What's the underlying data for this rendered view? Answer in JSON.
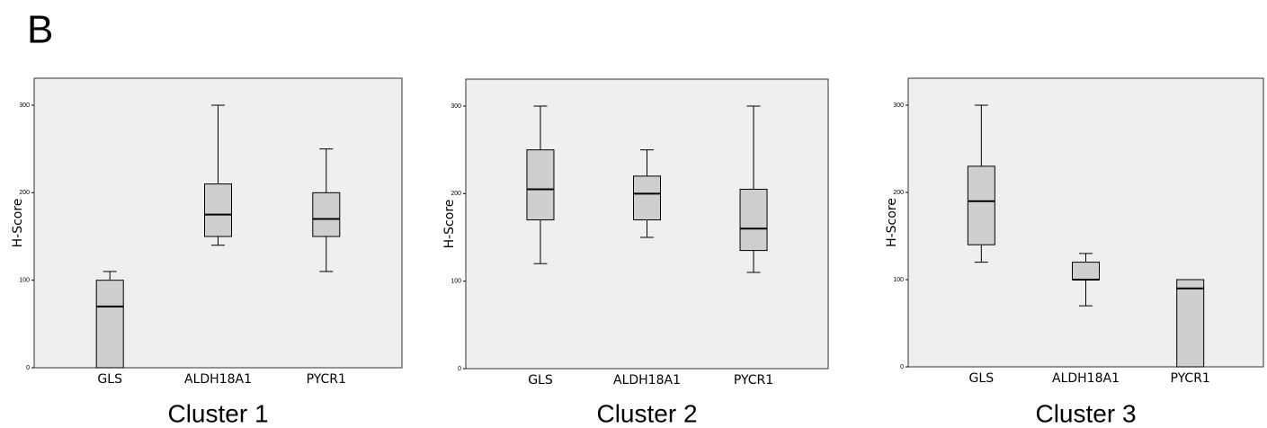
{
  "panel_label": "B",
  "chart_data": [
    {
      "type": "box",
      "title": "Cluster 1",
      "y_label": "H-Score",
      "categories": [
        "GLS",
        "ALDH18A1",
        "PYCR1"
      ],
      "boxes": [
        {
          "min": 0,
          "q1": 0,
          "median": 70,
          "q3": 100,
          "max": 110
        },
        {
          "min": 140,
          "q1": 150,
          "median": 175,
          "q3": 210,
          "max": 300
        },
        {
          "min": 110,
          "q1": 150,
          "median": 170,
          "q3": 200,
          "max": 250
        }
      ],
      "ylim": [
        0,
        300
      ],
      "yticks": [
        0,
        100,
        200,
        300
      ]
    },
    {
      "type": "box",
      "title": "Cluster 2",
      "y_label": "H-Score",
      "categories": [
        "GLS",
        "ALDH18A1",
        "PYCR1"
      ],
      "boxes": [
        {
          "min": 120,
          "q1": 170,
          "median": 205,
          "q3": 250,
          "max": 300
        },
        {
          "min": 150,
          "q1": 170,
          "median": 200,
          "q3": 220,
          "max": 250
        },
        {
          "min": 110,
          "q1": 135,
          "median": 160,
          "q3": 205,
          "max": 300
        }
      ],
      "ylim": [
        0,
        300
      ],
      "yticks": [
        0,
        100,
        200,
        300
      ]
    },
    {
      "type": "box",
      "title": "Cluster 3",
      "y_label": "H-Score",
      "categories": [
        "GLS",
        "ALDH18A1",
        "PYCR1"
      ],
      "boxes": [
        {
          "min": 120,
          "q1": 140,
          "median": 190,
          "q3": 230,
          "max": 300
        },
        {
          "min": 70,
          "q1": 100,
          "median": 100,
          "q3": 120,
          "max": 130
        },
        {
          "min": 0,
          "q1": 0,
          "median": 90,
          "q3": 100,
          "max": 100
        }
      ],
      "ylim": [
        0,
        300
      ],
      "yticks": [
        0,
        100,
        200,
        300
      ]
    }
  ]
}
